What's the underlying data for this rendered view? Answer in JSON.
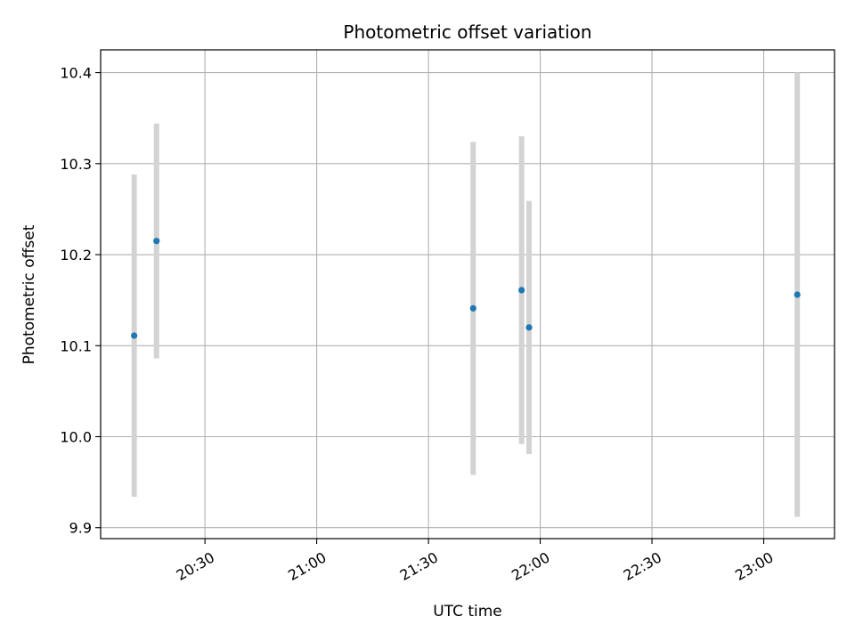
{
  "chart_data": {
    "type": "scatter",
    "title": "Photometric offset variation",
    "xlabel": "UTC time",
    "ylabel": "Photometric offset",
    "grid": true,
    "x_ticks": [
      "20:30",
      "21:00",
      "21:30",
      "22:00",
      "22:30",
      "23:00"
    ],
    "y_ticks": [
      9.9,
      10.0,
      10.1,
      10.2,
      10.3,
      10.4
    ],
    "xlim": [
      "20:02",
      "23:19"
    ],
    "ylim": [
      9.888,
      10.425
    ],
    "colors": {
      "point": "#1f77b4",
      "errorbar": "#d3d3d3",
      "grid": "#b0b0b0"
    },
    "points": [
      {
        "x": "20:11",
        "y": 10.111,
        "yerr": 0.177
      },
      {
        "x": "20:17",
        "y": 10.215,
        "yerr": 0.129
      },
      {
        "x": "21:42",
        "y": 10.141,
        "yerr": 0.183
      },
      {
        "x": "21:55",
        "y": 10.161,
        "yerr": 0.169
      },
      {
        "x": "21:57",
        "y": 10.12,
        "yerr": 0.139
      },
      {
        "x": "23:09",
        "y": 10.156,
        "yerr": 0.244
      }
    ]
  }
}
